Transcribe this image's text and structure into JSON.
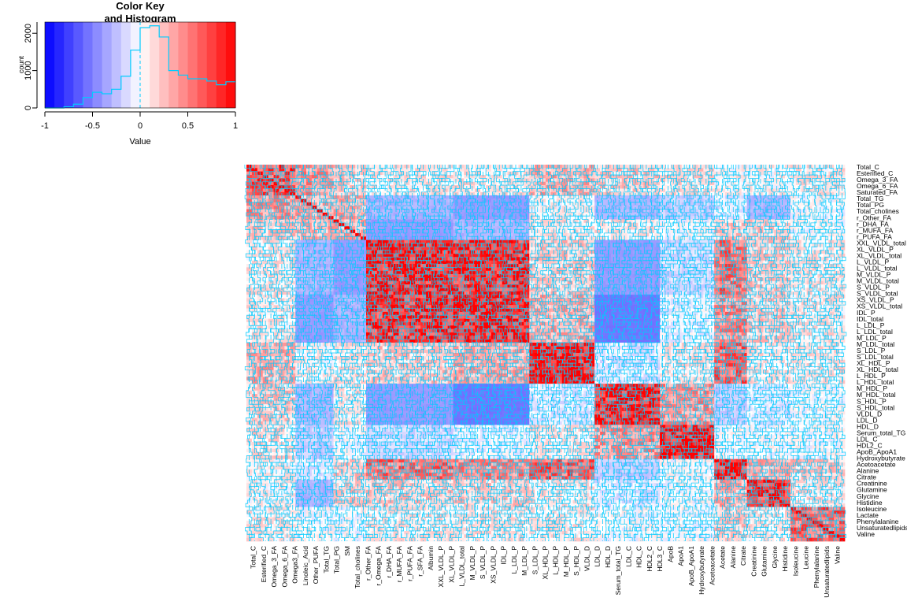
{
  "chart_data": [
    {
      "type": "histogram",
      "title_lines": [
        "Color Key",
        "and Histogram"
      ],
      "xlabel": "Value",
      "ylabel": "count",
      "xlim": [
        -1,
        1
      ],
      "ylim": [
        0,
        2300
      ],
      "x_ticks": [
        "-1",
        "-0.5",
        "0",
        "0.5",
        "1"
      ],
      "y_ticks": [
        "0",
        "1000",
        "2000"
      ],
      "color_scale": {
        "low": "#0000ff",
        "mid": "#ffffff",
        "high": "#ff0000",
        "breaks": 20
      },
      "trace_color": "#00ccff",
      "bins": [
        -1.0,
        -0.9,
        -0.8,
        -0.7,
        -0.6,
        -0.5,
        -0.4,
        -0.3,
        -0.2,
        -0.1,
        0.0,
        0.1,
        0.2,
        0.3,
        0.4,
        0.5,
        0.6,
        0.7,
        0.8,
        0.9,
        1.0
      ],
      "counts": [
        0,
        0,
        30,
        100,
        280,
        420,
        380,
        500,
        850,
        1550,
        2150,
        2200,
        1900,
        1000,
        880,
        780,
        780,
        720,
        620,
        700,
        920
      ]
    },
    {
      "type": "heatmap",
      "value_range": [
        -1,
        1
      ],
      "trace_color": "#00ccff",
      "col_labels": [
        "Total_C",
        "Esterified_C",
        "Omega_3_FA",
        "Omega_6_FA",
        "Omega3_FA",
        "Linoleic_Acid",
        "Other_PUFA",
        "Total_TG",
        "Total_PG",
        "SM",
        "Total_cholines",
        "r_Other_FA",
        "r_Omega_FA",
        "r_DHA_FA",
        "r_MUFA_FA",
        "r_PUFA_FA",
        "r_SFA_FA",
        "Albumin",
        "XXL_VLDL_P",
        "XL_VLDL_P",
        "L_VLDL_total",
        "M_VLDL_P",
        "S_VLDL_P",
        "XS_VLDL_P",
        "IDL_P",
        "L_LDL_P",
        "M_LDL_P",
        "S_LDL_P",
        "XL_HDL_P",
        "L_HDL_P",
        "M_HDL_P",
        "S_HDL_P",
        "VLDL_D",
        "LDL_D",
        "HDL_D",
        "Serum_total_TG",
        "LDL_C",
        "HDL_C",
        "HDL2_C",
        "HDL3_C",
        "ApoB",
        "ApoA1",
        "ApoB_ApoA1",
        "Hydroxybutyrate",
        "Acetoacetate",
        "Acetate",
        "Alanine",
        "Citrate",
        "Creatinine",
        "Glutamine",
        "Glycine",
        "Histidine",
        "Isoleucine",
        "Leucine",
        "Phenylalanine",
        "Unsaturatedlipids",
        "Valine"
      ],
      "row_labels": [
        "Total_C",
        "Esterified_C",
        "Omega_3_FA",
        "Omega_6_FA",
        "Saturated_FA",
        "Total_TG",
        "Total_PG",
        "Total_cholines",
        "r_Other_FA",
        "r_DHA_FA",
        "r_MUFA_FA",
        "r_PUFA_FA",
        "XXL_VLDL_total",
        "XL_VLDL_P",
        "XL_VLDL_total",
        "L_VLDL_P",
        "L_VLDL_total",
        "M_VLDL_P",
        "M_VLDL_total",
        "S_VLDL_P",
        "S_VLDL_total",
        "XS_VLDL_P",
        "XS_VLDL_total",
        "IDL_P",
        "IDL_total",
        "L_LDL_P",
        "L_LDL_total",
        "M_LDL_P",
        "M_LDL_total",
        "S_LDL_P",
        "S_LDL_total",
        "XL_HDL_P",
        "XL_HDL_total",
        "L_HDL_P",
        "L_HDL_total",
        "M_HDL_P",
        "M_HDL_total",
        "S_HDL_P",
        "S_HDL_total",
        "VLDL_D",
        "LDL_D",
        "HDL_D",
        "Serum_total_TG",
        "LDL_C",
        "HDL2_C",
        "ApoB_ApoA1",
        "Hydroxybutyrate",
        "Acetoacetate",
        "Alanine",
        "Citrate",
        "Creatinine",
        "Glutamine",
        "Glycine",
        "Histidine",
        "Isoleucine",
        "Lactate",
        "Phenylalanine",
        "Unsaturatedlipids",
        "Valine"
      ]
    }
  ]
}
